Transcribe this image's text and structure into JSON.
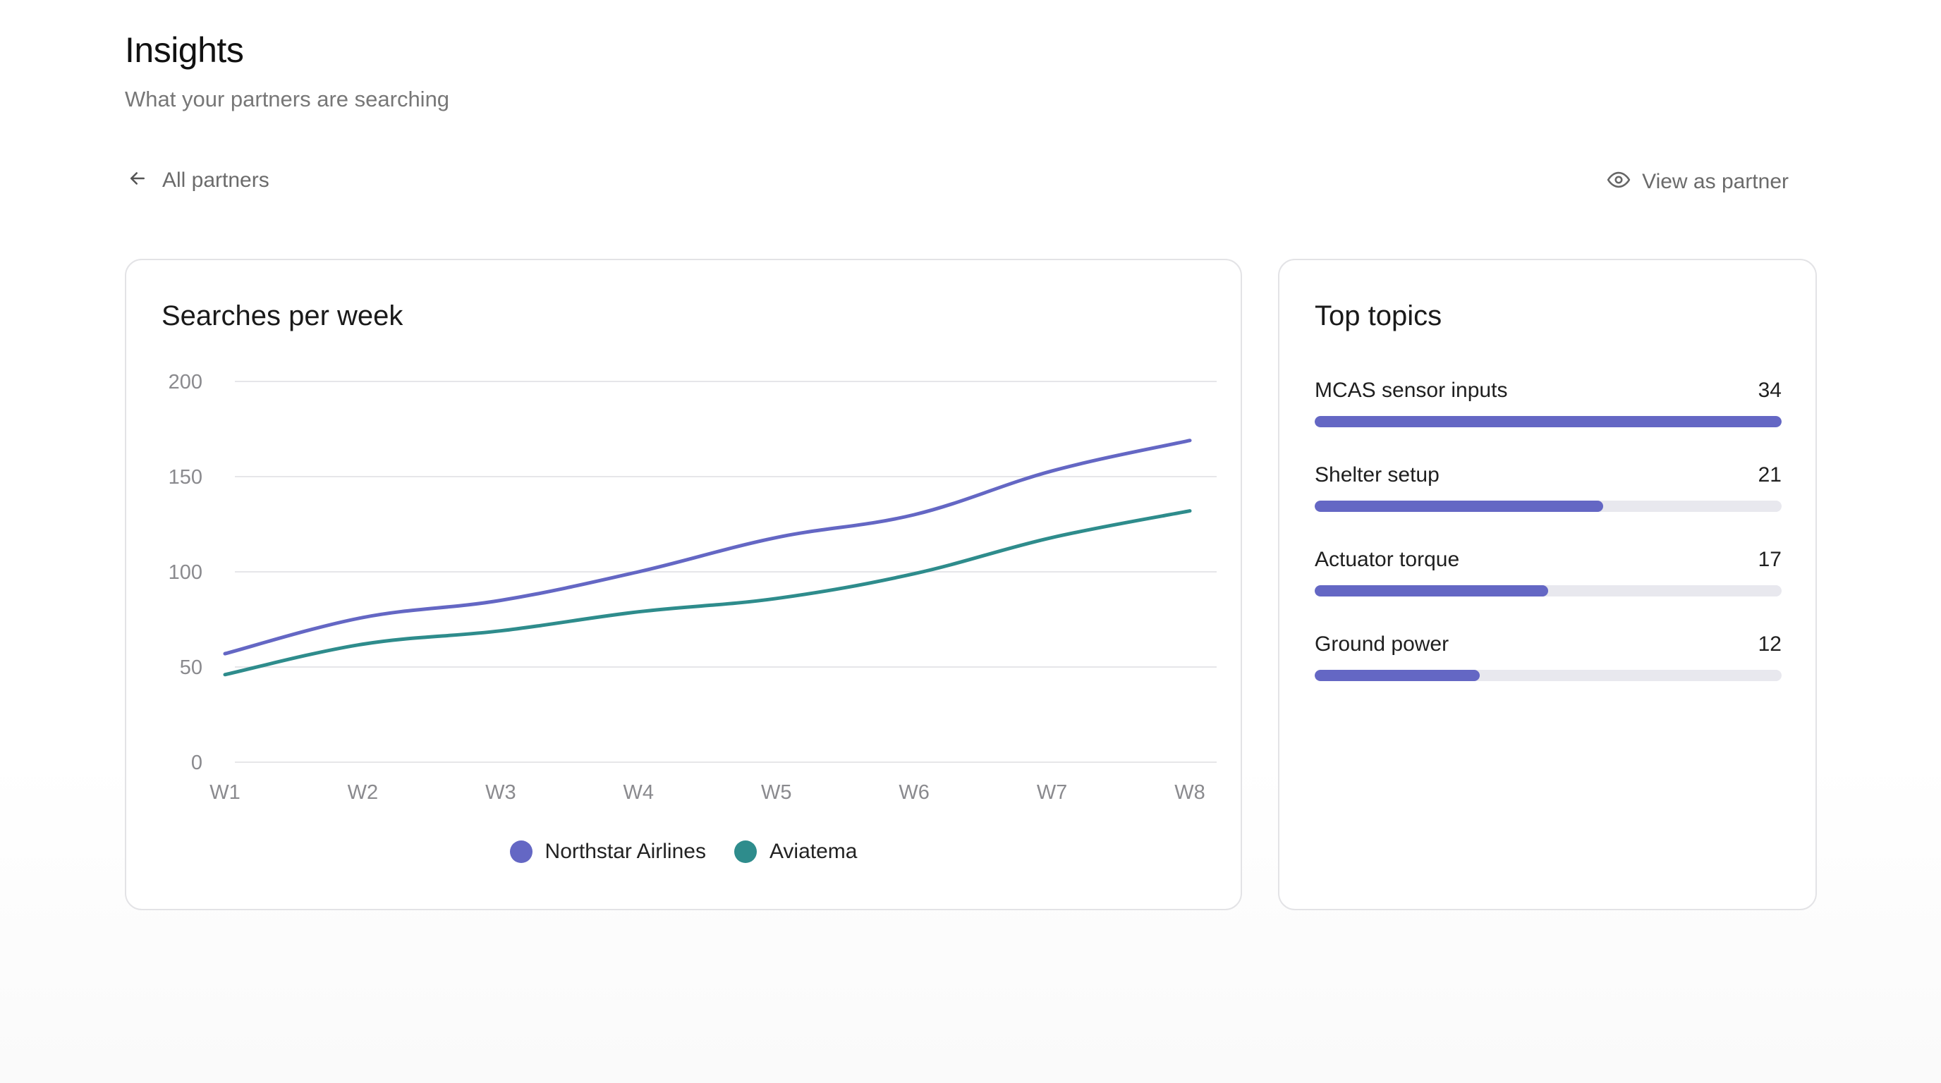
{
  "header": {
    "title": "Insights",
    "subtitle": "What your partners are searching"
  },
  "nav": {
    "back_label": "All partners",
    "back_icon": "arrow-left-icon",
    "view_as_label": "View as partner",
    "view_as_icon": "eye-icon"
  },
  "colors": {
    "northstar": "#6467c4",
    "aviatema": "#2e8c8c",
    "topic_bar": "#6467c4",
    "topic_track": "#e8e8ee"
  },
  "searches_card": {
    "title": "Searches per week"
  },
  "chart_data": {
    "type": "line",
    "title": "Searches per week",
    "xlabel": "",
    "ylabel": "",
    "x": [
      "W1",
      "W2",
      "W3",
      "W4",
      "W5",
      "W6",
      "W7",
      "W8"
    ],
    "ylim": [
      0,
      200
    ],
    "yticks": [
      "0",
      "50",
      "100",
      "150",
      "200"
    ],
    "grid": true,
    "legend": "bottom-center",
    "series": [
      {
        "name": "Northstar Airlines",
        "color": "#6467c4",
        "values": [
          57,
          76,
          85,
          100,
          118,
          130,
          153,
          169
        ]
      },
      {
        "name": "Aviatema",
        "color": "#2e8c8c",
        "values": [
          46,
          62,
          69,
          79,
          86,
          99,
          118,
          132
        ]
      }
    ]
  },
  "topics_card": {
    "title": "Top topics",
    "max": 34,
    "items": [
      {
        "label": "MCAS sensor inputs",
        "count": "34",
        "value": 34
      },
      {
        "label": "Shelter setup",
        "count": "21",
        "value": 21
      },
      {
        "label": "Actuator torque",
        "count": "17",
        "value": 17
      },
      {
        "label": "Ground power",
        "count": "12",
        "value": 12
      }
    ]
  }
}
